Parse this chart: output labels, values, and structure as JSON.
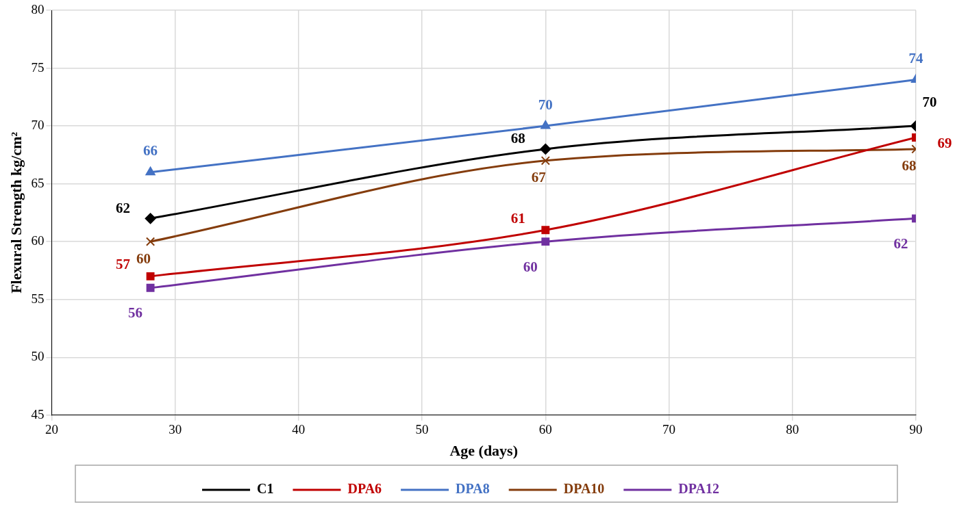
{
  "chart_data": {
    "type": "line",
    "xlabel": "Age (days)",
    "ylabel": "Flexural Strength kg/cm²",
    "x": [
      28,
      60,
      90
    ],
    "series": [
      {
        "name": "C1",
        "color": "#000000",
        "marker": "diamond",
        "values": [
          62,
          68,
          70
        ]
      },
      {
        "name": "DPA6",
        "color": "#c00000",
        "marker": "square",
        "values": [
          57,
          61,
          69
        ]
      },
      {
        "name": "DPA8",
        "color": "#4472c4",
        "marker": "triangle",
        "values": [
          66,
          70,
          74
        ]
      },
      {
        "name": "DPA10",
        "color": "#843c0c",
        "marker": "cross",
        "values": [
          60,
          67,
          68
        ]
      },
      {
        "name": "DPA12",
        "color": "#7030a0",
        "marker": "square",
        "values": [
          56,
          60,
          62
        ]
      }
    ],
    "xlim": [
      20,
      90
    ],
    "xticks": [
      20,
      30,
      40,
      50,
      60,
      70,
      80,
      90
    ],
    "ylim": [
      45,
      80
    ],
    "yticks": [
      45,
      50,
      55,
      60,
      65,
      70,
      75,
      80
    ],
    "grid": true,
    "legend": "bottom",
    "data_labels": true,
    "line_style": "solid"
  }
}
